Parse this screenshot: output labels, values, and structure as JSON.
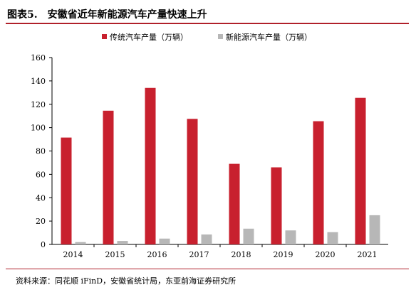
{
  "header": {
    "figure_label": "图表5.",
    "title": "安徽省近年新能源汽车产量快速上升"
  },
  "footer": {
    "source": "资料来源：同花顺 iFinD，安徽省统计局，东亚前海证券研究所"
  },
  "chart_data": {
    "type": "bar",
    "categories": [
      "2014",
      "2015",
      "2016",
      "2017",
      "2018",
      "2019",
      "2020",
      "2021"
    ],
    "series": [
      {
        "name": "传统汽车产量（万辆）",
        "color": "#c8202e",
        "values": [
          91.5,
          114.5,
          134.0,
          107.5,
          69.0,
          66.0,
          105.5,
          125.5
        ]
      },
      {
        "name": "新能源汽车产量（万辆）",
        "color": "#b7b7b7",
        "values": [
          2.0,
          3.0,
          5.0,
          8.5,
          13.5,
          12.0,
          10.5,
          25.0
        ]
      }
    ],
    "title": "安徽省近年新能源汽车产量快速上升",
    "xlabel": "",
    "ylabel": "",
    "ylim": [
      0,
      160
    ],
    "yticks": [
      0,
      20,
      40,
      60,
      80,
      100,
      120,
      140,
      160
    ],
    "legend_position": "top-center",
    "grid": false
  }
}
